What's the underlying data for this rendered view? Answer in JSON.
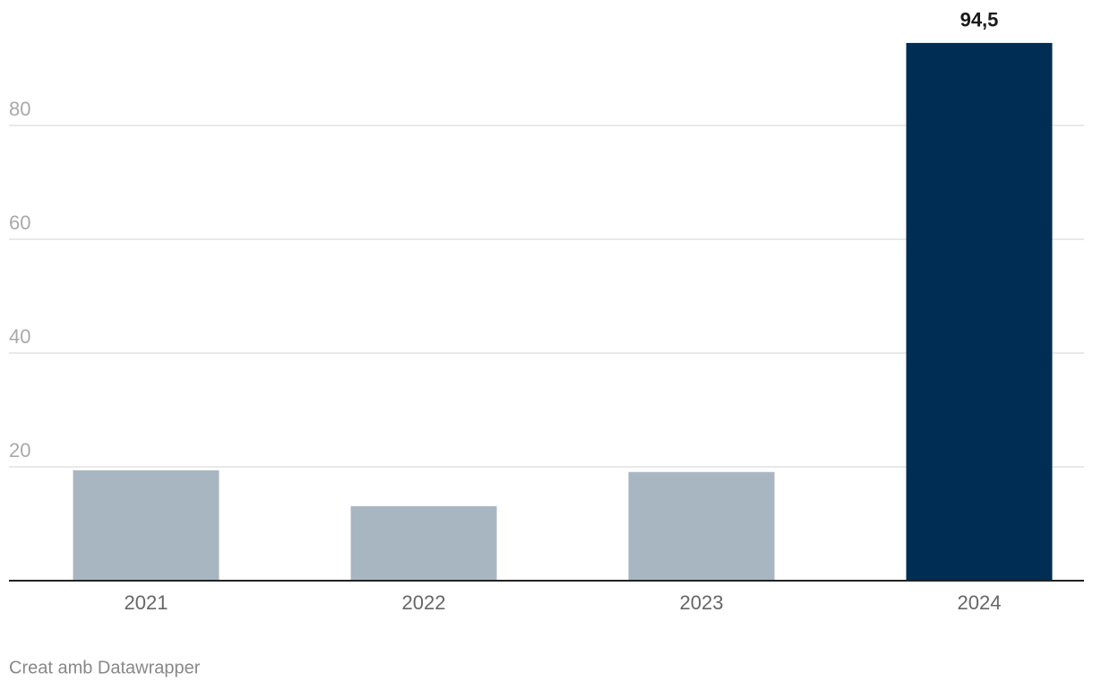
{
  "chart_data": {
    "type": "bar",
    "categories": [
      "2021",
      "2022",
      "2023",
      "2024"
    ],
    "values": [
      19.4,
      13.1,
      19.1,
      94.5
    ],
    "value_labels": [
      null,
      null,
      null,
      "94,5"
    ],
    "colors": [
      "#a8b6c2",
      "#a8b6c2",
      "#a8b6c2",
      "#002d53"
    ],
    "ylim": [
      0,
      95
    ],
    "yticks": [
      20,
      40,
      60,
      80
    ],
    "grid": true,
    "footer": "Creat amb Datawrapper"
  }
}
